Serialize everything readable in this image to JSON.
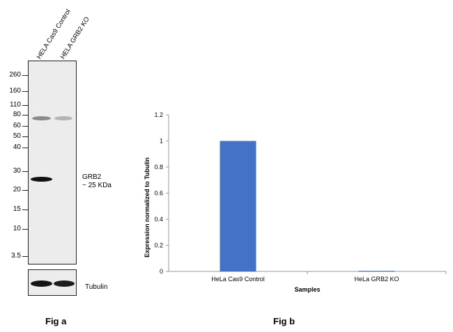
{
  "fig_a": {
    "lane_labels": [
      "HELA Cas9 Control",
      "HELA GRB2 KO"
    ],
    "mw_markers": [
      "260",
      "160",
      "110",
      "80",
      "60",
      "50",
      "40",
      "30",
      "20",
      "15",
      "10",
      "3.5"
    ],
    "band_label_line1": "GRB2",
    "band_label_line2": "~ 25 KDa",
    "loading_control_label": "Tubulin",
    "caption": "Fig a"
  },
  "fig_b": {
    "caption": "Fig b"
  },
  "chart_data": {
    "type": "bar",
    "categories": [
      "HeLa Cas9 Control",
      "HeLa GRB2 KO"
    ],
    "values": [
      1.0,
      0.005
    ],
    "xlabel": "Samples",
    "ylabel": "Expression  normalized to Tubulin",
    "ylim": [
      0,
      1.2
    ],
    "yticks": [
      0,
      0.2,
      0.4,
      0.6,
      0.8,
      1,
      1.2
    ],
    "bar_color": "#4472c4",
    "grid": false
  }
}
